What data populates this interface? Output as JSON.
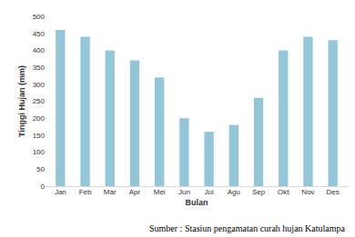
{
  "chart_data": {
    "type": "bar",
    "x_label": "Bulan",
    "y_label": "Tinggi Hujan (mm)",
    "categories": [
      "Jan",
      "Feb",
      "Mar",
      "Apr",
      "Mei",
      "Jun",
      "Jul",
      "Agu",
      "Sep",
      "Okt",
      "Nov",
      "Des"
    ],
    "values": [
      460,
      440,
      400,
      370,
      320,
      200,
      160,
      180,
      260,
      400,
      440,
      430
    ],
    "color": "#93c6d8",
    "ylim": [
      0,
      500
    ],
    "yticks": [
      0,
      50,
      100,
      150,
      200,
      250,
      300,
      350,
      400,
      450,
      500
    ],
    "grid": false,
    "annotations": [
      "Sumber : Stasiun pengamatan curah hujan Katulampa"
    ]
  }
}
